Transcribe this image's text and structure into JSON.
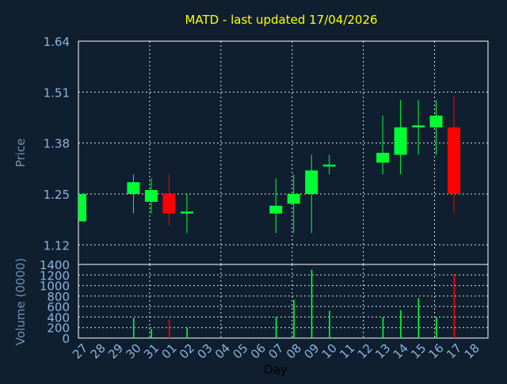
{
  "chart_data": [
    {
      "type": "candlestick",
      "title": "MATD - last updated 17/04/2026",
      "ylabel": "Price",
      "ylim": [
        1.07,
        1.64
      ],
      "yticks": [
        "1.64",
        "1.51",
        "1.38",
        "1.25",
        "1.12"
      ],
      "grid": true,
      "colors": {
        "up": "#00ff33",
        "down": "#ff0000",
        "grid": "#ffffff",
        "background": "#0f1f30"
      },
      "candles": [
        {
          "day": "27",
          "open": 1.18,
          "high": 1.25,
          "low": 1.18,
          "close": 1.25
        },
        {
          "day": "30",
          "open": 1.25,
          "high": 1.3,
          "low": 1.2,
          "close": 1.28
        },
        {
          "day": "31",
          "open": 1.23,
          "high": 1.29,
          "low": 1.2,
          "close": 1.26
        },
        {
          "day": "01",
          "open": 1.25,
          "high": 1.3,
          "low": 1.17,
          "close": 1.2
        },
        {
          "day": "02",
          "open": 1.2,
          "high": 1.25,
          "low": 1.15,
          "close": 1.205
        },
        {
          "day": "07",
          "open": 1.2,
          "high": 1.29,
          "low": 1.15,
          "close": 1.22
        },
        {
          "day": "08",
          "open": 1.225,
          "high": 1.3,
          "low": 1.15,
          "close": 1.25
        },
        {
          "day": "09",
          "open": 1.25,
          "high": 1.35,
          "low": 1.15,
          "close": 1.31
        },
        {
          "day": "10",
          "open": 1.32,
          "high": 1.35,
          "low": 1.3,
          "close": 1.325
        },
        {
          "day": "13",
          "open": 1.33,
          "high": 1.45,
          "low": 1.3,
          "close": 1.355
        },
        {
          "day": "14",
          "open": 1.35,
          "high": 1.49,
          "low": 1.3,
          "close": 1.42
        },
        {
          "day": "15",
          "open": 1.42,
          "high": 1.49,
          "low": 1.35,
          "close": 1.425
        },
        {
          "day": "16",
          "open": 1.42,
          "high": 1.49,
          "low": 1.35,
          "close": 1.45
        },
        {
          "day": "17",
          "open": 1.42,
          "high": 1.5,
          "low": 1.2,
          "close": 1.25
        }
      ]
    },
    {
      "type": "bar",
      "ylabel": "Volume (0000)",
      "xlabel": "Day",
      "ylim": [
        0,
        1400
      ],
      "yticks": [
        "1400",
        "1200",
        "1000",
        "800",
        "600",
        "400",
        "200",
        "0"
      ],
      "categories": [
        "27",
        "28",
        "29",
        "30",
        "31",
        "01",
        "02",
        "03",
        "04",
        "05",
        "06",
        "07",
        "08",
        "09",
        "10",
        "11",
        "12",
        "13",
        "14",
        "15",
        "16",
        "17",
        "18"
      ],
      "values": [
        0,
        0,
        0,
        380,
        170,
        350,
        200,
        0,
        0,
        0,
        0,
        400,
        730,
        1300,
        520,
        0,
        0,
        400,
        530,
        760,
        390,
        1220,
        0
      ],
      "bar_colors": [
        "up",
        "up",
        "up",
        "up",
        "up",
        "down",
        "up",
        "up",
        "up",
        "up",
        "up",
        "up",
        "up",
        "up",
        "up",
        "up",
        "up",
        "up",
        "up",
        "up",
        "up",
        "down",
        "up"
      ]
    }
  ]
}
